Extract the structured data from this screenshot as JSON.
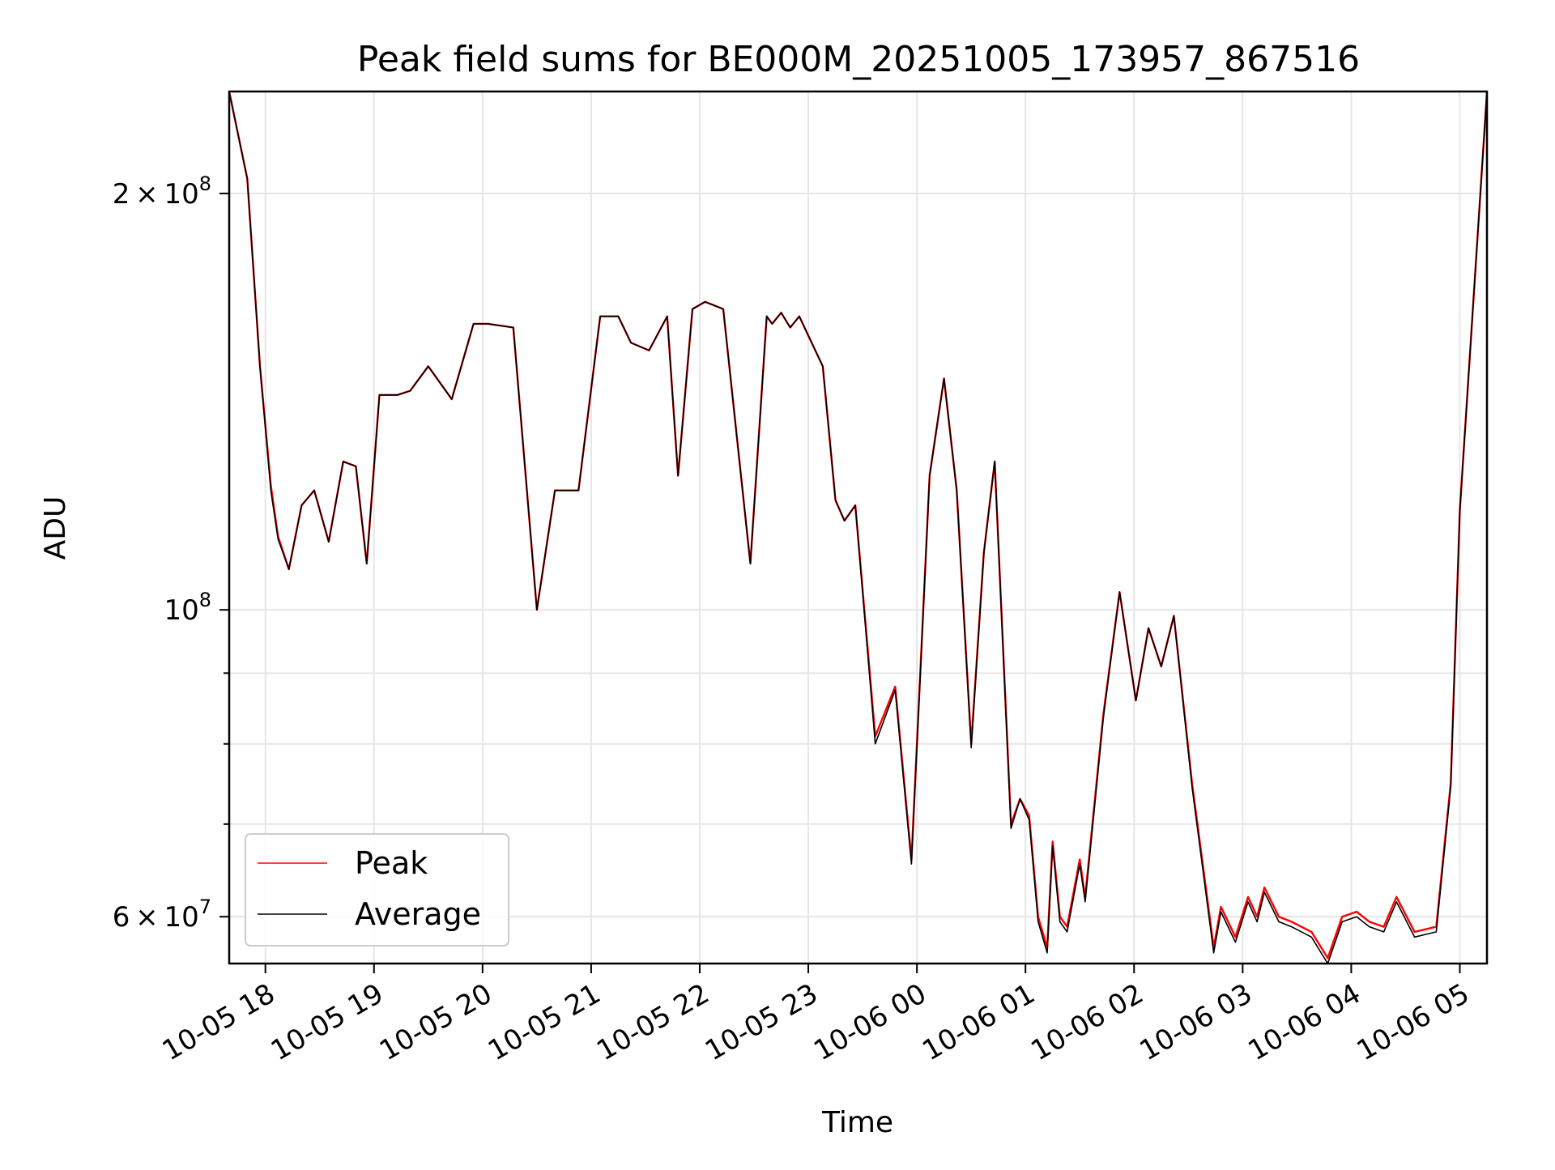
{
  "chart_data": {
    "type": "line",
    "title": "Peak field sums for BE000M_20251005_173957_867516",
    "xlabel": "Time",
    "ylabel": "ADU",
    "yscale": "log",
    "ylim": [
      55500000,
      237000000
    ],
    "xlim": [
      "2025-10-05 17:40",
      "2025-10-06 05:15"
    ],
    "grid": true,
    "legend_position": "lower left",
    "x_tick_labels": [
      "10-05 18",
      "10-05 19",
      "10-05 20",
      "10-05 21",
      "10-05 22",
      "10-05 23",
      "10-06 00",
      "10-06 01",
      "10-06 02",
      "10-06 03",
      "10-06 04",
      "10-06 05"
    ],
    "x_ticks": [
      "2025-10-05 18:00",
      "2025-10-05 19:00",
      "2025-10-05 20:00",
      "2025-10-05 21:00",
      "2025-10-05 22:00",
      "2025-10-05 23:00",
      "2025-10-06 00:00",
      "2025-10-06 01:00",
      "2025-10-06 02:00",
      "2025-10-06 03:00",
      "2025-10-06 04:00",
      "2025-10-06 05:00"
    ],
    "y_major_ticks": [
      {
        "value": 60000000,
        "mantissa": "6",
        "exponent": "7"
      },
      {
        "value": 100000000,
        "mantissa": "",
        "exponent": "8"
      },
      {
        "value": 200000000,
        "mantissa": "2",
        "exponent": "8"
      }
    ],
    "y_minor_ticks": [
      70000000,
      80000000,
      90000000
    ],
    "tick_times_symbol": "×",
    "tick_base": "10",
    "x": [
      "2025-10-05 17:40",
      "2025-10-05 17:50",
      "2025-10-05 17:57",
      "2025-10-05 18:03",
      "2025-10-05 18:07",
      "2025-10-05 18:13",
      "2025-10-05 18:20",
      "2025-10-05 18:27",
      "2025-10-05 18:35",
      "2025-10-05 18:43",
      "2025-10-05 18:50",
      "2025-10-05 18:56",
      "2025-10-05 19:03",
      "2025-10-05 19:13",
      "2025-10-05 19:20",
      "2025-10-05 19:30",
      "2025-10-05 19:43",
      "2025-10-05 19:55",
      "2025-10-05 20:03",
      "2025-10-05 20:17",
      "2025-10-05 20:30",
      "2025-10-05 20:40",
      "2025-10-05 20:53",
      "2025-10-05 21:05",
      "2025-10-05 21:15",
      "2025-10-05 21:22",
      "2025-10-05 21:32",
      "2025-10-05 21:42",
      "2025-10-05 21:48",
      "2025-10-05 21:56",
      "2025-10-05 22:03",
      "2025-10-05 22:13",
      "2025-10-05 22:28",
      "2025-10-05 22:37",
      "2025-10-05 22:40",
      "2025-10-05 22:45",
      "2025-10-05 22:50",
      "2025-10-05 22:55",
      "2025-10-05 23:08",
      "2025-10-05 23:15",
      "2025-10-05 23:20",
      "2025-10-05 23:26",
      "2025-10-05 23:37",
      "2025-10-05 23:48",
      "2025-10-05 23:57",
      "2025-10-06 00:07",
      "2025-10-06 00:15",
      "2025-10-06 00:22",
      "2025-10-06 00:30",
      "2025-10-06 00:37",
      "2025-10-06 00:43",
      "2025-10-06 00:52",
      "2025-10-06 00:57",
      "2025-10-06 01:02",
      "2025-10-06 01:07",
      "2025-10-06 01:12",
      "2025-10-06 01:15",
      "2025-10-06 01:19",
      "2025-10-06 01:23",
      "2025-10-06 01:30",
      "2025-10-06 01:33",
      "2025-10-06 01:43",
      "2025-10-06 01:52",
      "2025-10-06 02:01",
      "2025-10-06 02:08",
      "2025-10-06 02:15",
      "2025-10-06 02:22",
      "2025-10-06 02:32",
      "2025-10-06 02:44",
      "2025-10-06 02:48",
      "2025-10-06 02:56",
      "2025-10-06 03:03",
      "2025-10-06 03:08",
      "2025-10-06 03:12",
      "2025-10-06 03:20",
      "2025-10-06 03:27",
      "2025-10-06 03:38",
      "2025-10-06 03:47",
      "2025-10-06 03:55",
      "2025-10-06 04:03",
      "2025-10-06 04:10",
      "2025-10-06 04:18",
      "2025-10-06 04:25",
      "2025-10-06 04:35",
      "2025-10-06 04:47",
      "2025-10-06 04:55",
      "2025-10-06 05:00",
      "2025-10-06 05:15"
    ],
    "series": [
      {
        "name": "Peak",
        "color": "#ff0000",
        "values": [
          237000000,
          205000000,
          150000000,
          123000000,
          113000000,
          107000000,
          119000000,
          122000000,
          112000000,
          128000000,
          127000000,
          108000000,
          143000000,
          143000000,
          144000000,
          150000000,
          142000000,
          161000000,
          161000000,
          160000000,
          100000000,
          122000000,
          122000000,
          163000000,
          163000000,
          156000000,
          154000000,
          163000000,
          125000000,
          165000000,
          167000000,
          165000000,
          108000000,
          163000000,
          161000000,
          164000000,
          160000000,
          163000000,
          150000000,
          120000000,
          116000000,
          119000000,
          81000000,
          88000000,
          66000000,
          125000000,
          147000000,
          122000000,
          80000000,
          110000000,
          128000000,
          70000000,
          73000000,
          71000000,
          60000000,
          57000000,
          68000000,
          60000000,
          59000000,
          66000000,
          62000000,
          84000000,
          103000000,
          86000000,
          97000000,
          91000000,
          99000000,
          75000000,
          57000000,
          61000000,
          58000000,
          62000000,
          60000000,
          63000000,
          60000000,
          59500000,
          58500000,
          56000000,
          60000000,
          60500000,
          59500000,
          59000000,
          62000000,
          58500000,
          59000000,
          75000000,
          118000000,
          237000000
        ]
      },
      {
        "name": "Average",
        "color": "#000000",
        "values": [
          237000000,
          205000000,
          150000000,
          122000000,
          112500000,
          107000000,
          119000000,
          122000000,
          112000000,
          128000000,
          127000000,
          108000000,
          143000000,
          143000000,
          144000000,
          150000000,
          142000000,
          161000000,
          161000000,
          160000000,
          100000000,
          122000000,
          122000000,
          163000000,
          163000000,
          156000000,
          154000000,
          163000000,
          125000000,
          165000000,
          167000000,
          165000000,
          108000000,
          163000000,
          161000000,
          164000000,
          160000000,
          163000000,
          150000000,
          120000000,
          116000000,
          119000000,
          80000000,
          87500000,
          65500000,
          125000000,
          147000000,
          122000000,
          79500000,
          110000000,
          128000000,
          69500000,
          73000000,
          70500000,
          59500000,
          56500000,
          67500000,
          59500000,
          58500000,
          65500000,
          61500000,
          83500000,
          103000000,
          86000000,
          97000000,
          91000000,
          99000000,
          74500000,
          56500000,
          60500000,
          57500000,
          61500000,
          59500000,
          62500000,
          59500000,
          59000000,
          58000000,
          55500000,
          59500000,
          60000000,
          59000000,
          58500000,
          61500000,
          58000000,
          58500000,
          74500000,
          118000000,
          237000000
        ]
      }
    ]
  }
}
